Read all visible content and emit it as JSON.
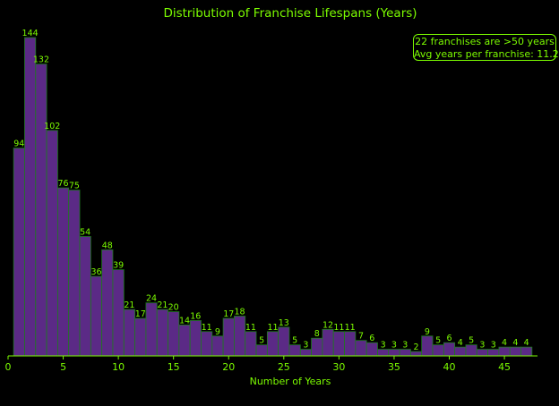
{
  "colors": {
    "background": "#000000",
    "bar_fill": "#5b2a86",
    "bar_edge": "#1e7a1e",
    "text": "#7CFC00"
  },
  "chart_data": {
    "type": "bar",
    "title": "Distribution of Franchise Lifespans (Years)",
    "xlabel": "Number of Years",
    "ylabel": "",
    "x": [
      1,
      2,
      3,
      4,
      5,
      6,
      7,
      8,
      9,
      10,
      11,
      12,
      13,
      14,
      15,
      16,
      17,
      18,
      19,
      20,
      21,
      22,
      23,
      24,
      25,
      26,
      27,
      28,
      29,
      30,
      31,
      32,
      33,
      34,
      35,
      36,
      37,
      38,
      39,
      40,
      41,
      42,
      43,
      44,
      45,
      46,
      47
    ],
    "values": [
      94,
      144,
      132,
      102,
      76,
      75,
      54,
      36,
      48,
      39,
      21,
      17,
      24,
      21,
      20,
      14,
      16,
      11,
      9,
      17,
      18,
      11,
      5,
      11,
      13,
      5,
      3,
      8,
      12,
      11,
      11,
      7,
      6,
      3,
      3,
      3,
      2,
      9,
      5,
      6,
      4,
      5,
      3,
      3,
      4,
      4,
      4
    ],
    "xlim": [
      0,
      48
    ],
    "ylim": [
      0,
      144
    ],
    "xticks": [
      0,
      5,
      10,
      15,
      20,
      25,
      30,
      35,
      40,
      45
    ],
    "grid": false,
    "annotation": {
      "line1": "22 franchises are >50 years",
      "line2": "Avg years per franchise: 11.2"
    }
  }
}
